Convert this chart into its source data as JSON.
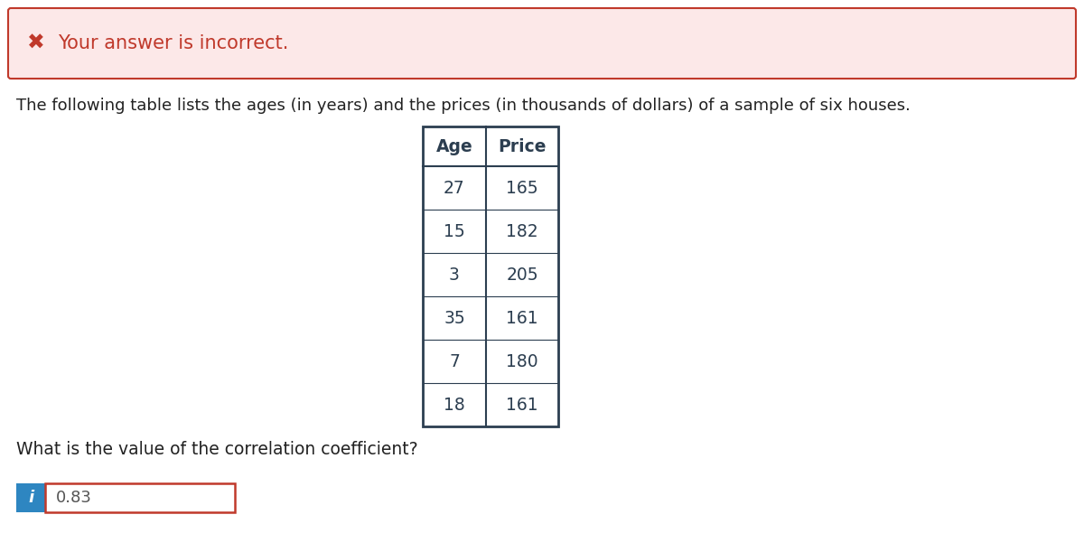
{
  "error_banner_text": "Your answer is incorrect.",
  "error_banner_bg": "#fce8e8",
  "error_banner_border": "#c0392b",
  "error_x_color": "#c0392b",
  "main_text": "The following table lists the ages (in years) and the prices (in thousands of dollars) of a sample of six houses.",
  "main_text_color": "#222222",
  "table_headers": [
    "Age",
    "Price"
  ],
  "table_data": [
    [
      27,
      165
    ],
    [
      15,
      182
    ],
    [
      3,
      205
    ],
    [
      35,
      161
    ],
    [
      7,
      180
    ],
    [
      18,
      161
    ]
  ],
  "question_text": "What is the value of the correlation coefficient?",
  "answer_value": "0.83",
  "info_icon_bg": "#2e86c1",
  "info_icon_text": "i",
  "answer_box_border": "#c0392b",
  "background_color": "#ffffff",
  "table_border_color": "#2c3e50",
  "table_text_color": "#2c3e50",
  "table_header_color": "#2c3e50",
  "banner_x_symbol": "✖"
}
